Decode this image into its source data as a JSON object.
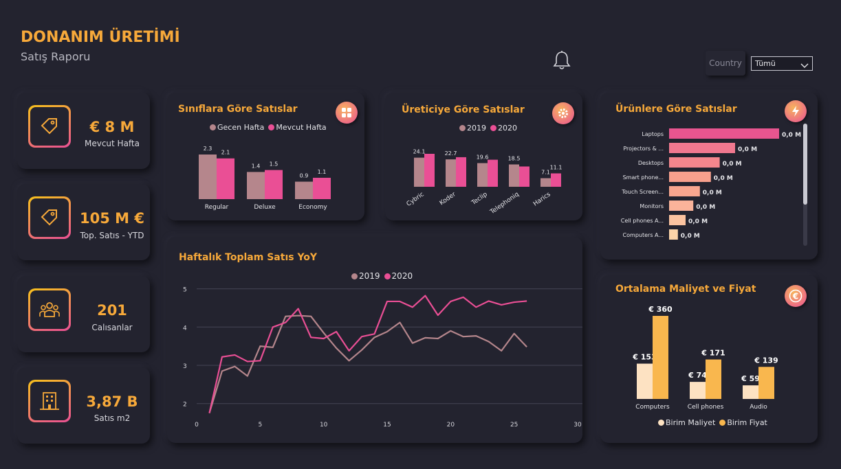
{
  "header": {
    "title": "DONANIM ÜRETİMİ",
    "subtitle": "Satış Raporu"
  },
  "filter": {
    "label": "Country",
    "value": "Tümü"
  },
  "kpis": [
    {
      "value": "€ 8 M",
      "label": "Mevcut Hafta",
      "icon": "price-tag-icon"
    },
    {
      "value": "105 M €",
      "label": "Top. Satıs - YTD",
      "icon": "price-tag-icon"
    },
    {
      "value": "201",
      "label": "Calısanlar",
      "icon": "people-icon"
    },
    {
      "value": "3,87 B",
      "label": "Satıs m2",
      "icon": "building-icon"
    }
  ],
  "colors": {
    "accent": "#f7a93a",
    "pink": "#ea4f95",
    "mauve": "#b5868c",
    "light": "#fde2c2",
    "orange": "#f9b74e",
    "bg": "#23232f"
  },
  "class_sales": {
    "title": "Sınıflara Göre Satıslar",
    "chart_data": {
      "type": "bar",
      "categories": [
        "Regular",
        "Deluxe",
        "Economy"
      ],
      "series": [
        {
          "name": "Gecen Hafta",
          "values": [
            2.3,
            1.4,
            0.9
          ],
          "labels": [
            "2.3",
            "1.4",
            "0.9"
          ]
        },
        {
          "name": "Mevcut Hafta",
          "values": [
            2.1,
            1.5,
            1.1
          ],
          "labels": [
            "2.1",
            "1.5",
            "1.1"
          ]
        }
      ]
    }
  },
  "producer_sales": {
    "title": "Üreticiye Göre Satıslar",
    "chart_data": {
      "type": "bar",
      "categories": [
        "Cybric",
        "Koder",
        "Teclip",
        "Telephoniq",
        "Harics"
      ],
      "series": [
        {
          "name": "2019",
          "values": [
            24.1,
            22.7,
            19.6,
            18.5,
            7.1
          ],
          "labels": [
            "24.1",
            "22.7",
            "19.6",
            "18.5",
            "7.1"
          ]
        },
        {
          "name": "2020",
          "values": [
            27.3,
            24.5,
            22.4,
            16.8,
            11.1
          ],
          "labels": [
            "",
            "",
            "",
            "",
            "11.1"
          ]
        }
      ]
    }
  },
  "product_sales": {
    "title": "Ürünlere Göre Satıslar",
    "chart_data": {
      "type": "bar",
      "orientation": "horizontal",
      "categories": [
        "Laptops",
        "Projectors & ...",
        "Desktops",
        "Smart phone...",
        "Touch Screen...",
        "Monitors",
        "Cell phones A...",
        "Computers A..."
      ],
      "values": [
        1.0,
        0.6,
        0.46,
        0.38,
        0.28,
        0.22,
        0.15,
        0.08
      ],
      "labels": [
        "0,0 M",
        "0,0 M",
        "0,0 M",
        "0,0 M",
        "0,0 M",
        "0,0 M",
        "0,0 M",
        "0,0 M"
      ],
      "colors": [
        "#e8558f",
        "#f0788f",
        "#f4868d",
        "#f7a08d",
        "#f8a68f",
        "#fab39a",
        "#fbc3a0",
        "#fcd3a8"
      ]
    }
  },
  "weekly_sales": {
    "title": "Haftalık Toplam Satıs YoY",
    "chart_data": {
      "type": "line",
      "xlim": [
        0,
        30
      ],
      "ylim": [
        1.6,
        5.1
      ],
      "xticks": [
        "0",
        "5",
        "10",
        "15",
        "20",
        "25",
        "30"
      ],
      "yticks": [
        "2",
        "3",
        "4",
        "5"
      ],
      "series": [
        {
          "name": "2019",
          "x": [
            1,
            2,
            3,
            4,
            5,
            6,
            7,
            8,
            9,
            10,
            11,
            12,
            13,
            14,
            15,
            16,
            17,
            18,
            19,
            20,
            21,
            22,
            23,
            24,
            25,
            26
          ],
          "y": [
            1.75,
            2.85,
            2.97,
            2.72,
            3.5,
            3.47,
            4.28,
            4.3,
            4.28,
            3.85,
            3.45,
            3.12,
            3.4,
            3.73,
            3.88,
            4.12,
            3.58,
            3.72,
            3.7,
            3.9,
            3.75,
            3.77,
            3.62,
            3.38,
            3.83,
            3.48
          ]
        },
        {
          "name": "2020",
          "x": [
            1,
            2,
            3,
            4,
            5,
            6,
            7,
            8,
            9,
            10,
            11,
            12,
            13,
            14,
            15,
            16,
            17,
            18,
            19,
            20,
            21,
            22,
            23,
            24,
            25,
            26
          ],
          "y": [
            1.75,
            3.22,
            3.27,
            3.1,
            3.12,
            4.0,
            4.12,
            4.48,
            3.73,
            3.7,
            3.88,
            3.38,
            3.75,
            3.82,
            4.67,
            4.67,
            4.52,
            4.82,
            4.31,
            4.67,
            4.78,
            4.52,
            4.68,
            4.58,
            4.65,
            4.68
          ]
        }
      ]
    }
  },
  "avg_cost_price": {
    "title": "Ortalama Maliyet ve Fiyat",
    "chart_data": {
      "type": "bar",
      "categories": [
        "Computers",
        "Cell phones",
        "Audio"
      ],
      "series": [
        {
          "name": "Birim Maliyet",
          "values": [
            153,
            74,
            59
          ],
          "labels": [
            "€ 153",
            "€ 74",
            "€ 59"
          ]
        },
        {
          "name": "Birim Fiyat",
          "values": [
            360,
            171,
            139
          ],
          "labels": [
            "€ 360",
            "€ 171",
            "€ 139"
          ]
        }
      ]
    }
  }
}
